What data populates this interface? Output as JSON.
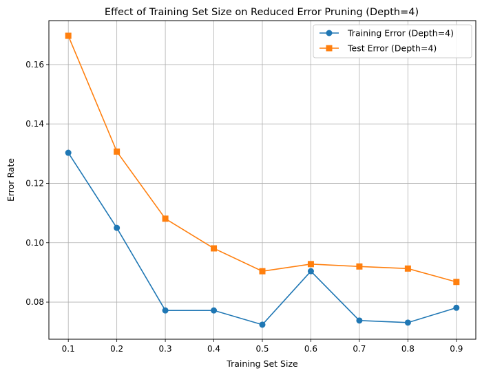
{
  "chart_data": {
    "type": "line",
    "title": "Effect of Training Set Size on Reduced Error Pruning (Depth=4)",
    "xlabel": "Training Set Size",
    "ylabel": "Error Rate",
    "x": [
      0.1,
      0.2,
      0.3,
      0.4,
      0.5,
      0.6,
      0.7,
      0.8,
      0.9
    ],
    "x_ticks": [
      "0.1",
      "0.2",
      "0.3",
      "0.4",
      "0.5",
      "0.6",
      "0.7",
      "0.8",
      "0.9"
    ],
    "y_ticks": [
      "0.08",
      "0.10",
      "0.12",
      "0.14",
      "0.16"
    ],
    "y_tick_values": [
      0.08,
      0.1,
      0.12,
      0.14,
      0.16
    ],
    "xlim": [
      0.06,
      0.94
    ],
    "ylim": [
      0.0675,
      0.1748
    ],
    "grid": true,
    "legend_position": "top-right",
    "series": [
      {
        "name": "Training Error (Depth=4)",
        "color": "#1f77b4",
        "marker": "circle",
        "values": [
          0.1303,
          0.105,
          0.0772,
          0.0772,
          0.0724,
          0.0904,
          0.0738,
          0.0731,
          0.0781
        ]
      },
      {
        "name": "Test Error (Depth=4)",
        "color": "#ff7f0e",
        "marker": "square",
        "values": [
          0.1697,
          0.1307,
          0.1081,
          0.0981,
          0.0904,
          0.0928,
          0.092,
          0.0913,
          0.0868
        ]
      }
    ]
  }
}
